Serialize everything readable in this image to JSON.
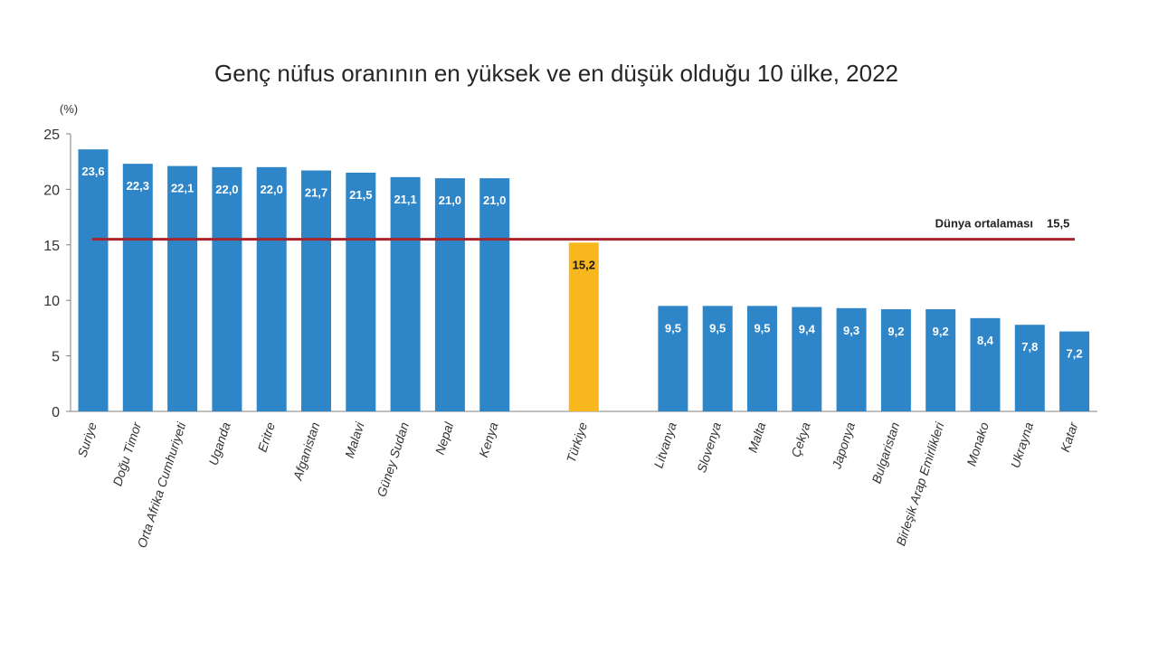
{
  "chart_data": {
    "type": "bar",
    "title": "Genç nüfus oranının en yüksek ve en düşük olduğu 10 ülke, 2022",
    "ylabel": "(%)",
    "xlabel": "",
    "ylim": [
      0,
      25
    ],
    "yticks": [
      "0",
      "5",
      "10",
      "15",
      "20",
      "25"
    ],
    "grid": false,
    "legend": "none",
    "categories": [
      "Suriye",
      "Doğu Timor",
      "Orta Afrika Cumhuriyeti",
      "Uganda",
      "Eritre",
      "Afganistan",
      "Malavi",
      "Güney Sudan",
      "Nepal",
      "Kenya",
      "Türkiye",
      "Litvanya",
      "Slovenya",
      "Malta",
      "Çekya",
      "Japonya",
      "Bulgaristan",
      "Birleşik Arap Emirlikleri",
      "Monako",
      "Ukrayna",
      "Katar"
    ],
    "values": [
      23.6,
      22.3,
      22.1,
      22.0,
      22.0,
      21.7,
      21.5,
      21.1,
      21.0,
      21.0,
      15.2,
      9.5,
      9.5,
      9.5,
      9.4,
      9.3,
      9.2,
      9.2,
      8.4,
      7.8,
      7.2
    ],
    "value_labels": [
      "23,6",
      "22,3",
      "22,1",
      "22,0",
      "22,0",
      "21,7",
      "21,5",
      "21,1",
      "21,0",
      "21,0",
      "15,2",
      "9,5",
      "9,5",
      "9,5",
      "9,4",
      "9,3",
      "9,2",
      "9,2",
      "8,4",
      "7,8",
      "7,2"
    ],
    "highlight_category": "Türkiye",
    "reference_line": {
      "label": "Dünya ortalaması",
      "value": 15.5,
      "value_label": "15,5"
    },
    "colors": {
      "bar": "#2e86c9",
      "highlight": "#f7b71d",
      "reference": "#a8242c",
      "axis": "#808080"
    }
  }
}
